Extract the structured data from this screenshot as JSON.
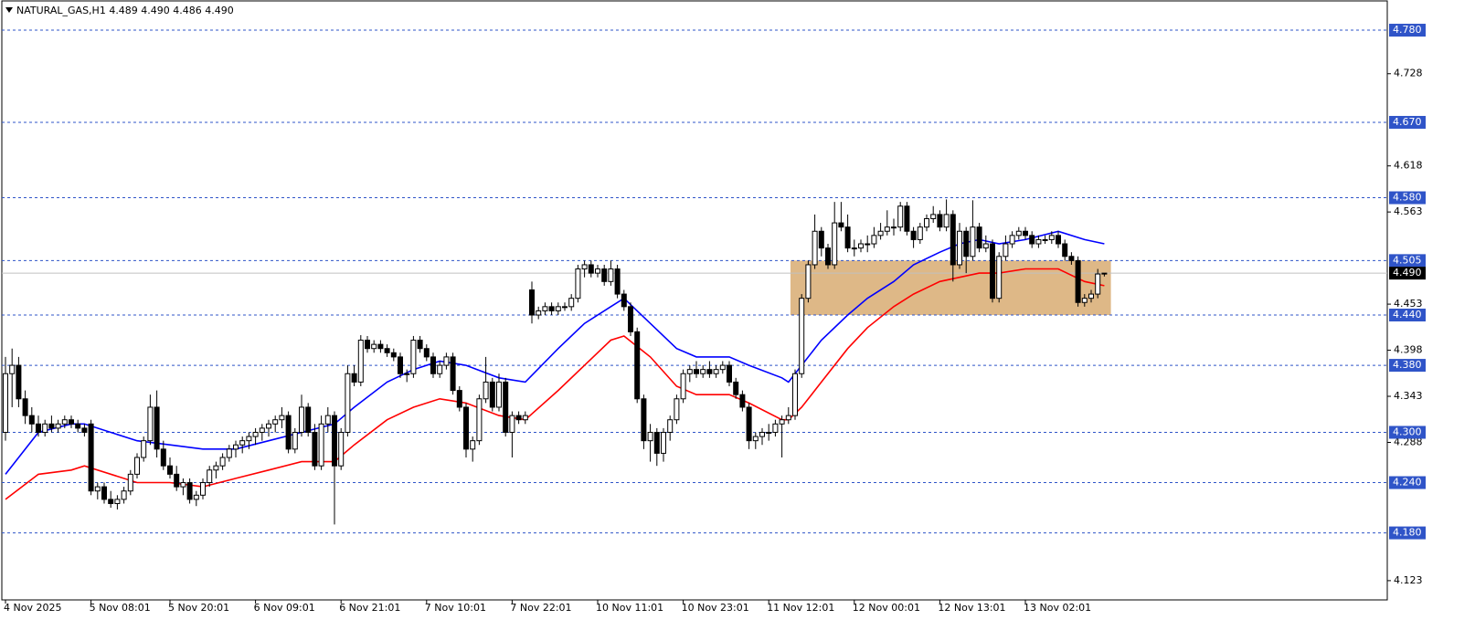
{
  "chart_data": {
    "type": "candlestick",
    "title": "NATURAL_GAS,H1  4.489 4.490 4.486 4.490",
    "categories": [
      "4 Nov 2025",
      null,
      null,
      null,
      null,
      null,
      null,
      null,
      null,
      null,
      null,
      null,
      null,
      "5 Nov 08:01",
      null,
      null,
      null,
      null,
      null,
      null,
      null,
      null,
      null,
      null,
      null,
      "5 Nov 20:01",
      null,
      null,
      null,
      null,
      null,
      null,
      null,
      null,
      null,
      null,
      null,
      null,
      "6 Nov 09:01",
      null,
      null,
      null,
      null,
      null,
      null,
      null,
      null,
      null,
      null,
      null,
      null,
      "6 Nov 21:01",
      null,
      null,
      null,
      null,
      null,
      null,
      null,
      null,
      null,
      null,
      null,
      null,
      "7 Nov 10:01",
      null,
      null,
      null,
      null,
      null,
      null,
      null,
      null,
      null,
      null,
      null,
      null,
      "7 Nov 22:01",
      null,
      null,
      null,
      null,
      null,
      null,
      null,
      null,
      null,
      null,
      null,
      null,
      "10 Nov 11:01",
      null,
      null,
      null,
      null,
      null,
      null,
      null,
      null,
      null,
      null,
      null,
      null,
      "10 Nov 23:01",
      null,
      null,
      null,
      null,
      null,
      null,
      null,
      null,
      null,
      null,
      null,
      null,
      "11 Nov 12:01",
      null,
      null,
      null,
      null,
      null,
      null,
      null,
      null,
      null,
      null,
      null,
      null,
      "12 Nov 00:01",
      null,
      null,
      null,
      null,
      null,
      null,
      null,
      null,
      null,
      null,
      null,
      null,
      "12 Nov 13:01",
      null,
      null,
      null,
      null,
      null,
      null,
      null,
      null,
      null,
      null,
      null,
      null,
      "13 Nov 02:01",
      null,
      null,
      null,
      null,
      null,
      null,
      null,
      null,
      null,
      null,
      null,
      null
    ],
    "candles": [
      [
        4.3,
        4.39,
        4.29,
        4.37
      ],
      [
        4.37,
        4.4,
        4.33,
        4.38
      ],
      [
        4.38,
        4.39,
        4.33,
        4.34
      ],
      [
        4.34,
        4.35,
        4.31,
        4.32
      ],
      [
        4.32,
        4.33,
        4.3,
        4.31
      ],
      [
        4.31,
        4.32,
        4.295,
        4.3
      ],
      [
        4.3,
        4.315,
        4.295,
        4.31
      ],
      [
        4.31,
        4.32,
        4.3,
        4.305
      ],
      [
        4.305,
        4.315,
        4.3,
        4.31
      ],
      [
        4.31,
        4.32,
        4.305,
        4.315
      ],
      [
        4.315,
        4.32,
        4.305,
        4.31
      ],
      [
        4.31,
        4.315,
        4.3,
        4.305
      ],
      [
        4.305,
        4.31,
        4.295,
        4.3
      ],
      [
        4.31,
        4.315,
        4.225,
        4.23
      ],
      [
        4.23,
        4.24,
        4.22,
        4.235
      ],
      [
        4.235,
        4.24,
        4.215,
        4.22
      ],
      [
        4.22,
        4.23,
        4.21,
        4.215
      ],
      [
        4.215,
        4.225,
        4.208,
        4.22
      ],
      [
        4.22,
        4.235,
        4.215,
        4.23
      ],
      [
        4.23,
        4.255,
        4.225,
        4.25
      ],
      [
        4.25,
        4.275,
        4.245,
        4.27
      ],
      [
        4.27,
        4.295,
        4.265,
        4.29
      ],
      [
        4.29,
        4.345,
        4.285,
        4.33
      ],
      [
        4.33,
        4.35,
        4.27,
        4.28
      ],
      [
        4.28,
        4.29,
        4.255,
        4.26
      ],
      [
        4.26,
        4.27,
        4.245,
        4.25
      ],
      [
        4.25,
        4.26,
        4.23,
        4.235
      ],
      [
        4.235,
        4.245,
        4.225,
        4.24
      ],
      [
        4.24,
        4.245,
        4.215,
        4.22
      ],
      [
        4.22,
        4.23,
        4.212,
        4.225
      ],
      [
        4.225,
        4.245,
        4.22,
        4.24
      ],
      [
        4.24,
        4.26,
        4.235,
        4.255
      ],
      [
        4.255,
        4.265,
        4.245,
        4.26
      ],
      [
        4.26,
        4.275,
        4.255,
        4.27
      ],
      [
        4.27,
        4.285,
        4.265,
        4.28
      ],
      [
        4.28,
        4.29,
        4.27,
        4.285
      ],
      [
        4.285,
        4.295,
        4.275,
        4.29
      ],
      [
        4.29,
        4.3,
        4.28,
        4.295
      ],
      [
        4.295,
        4.305,
        4.285,
        4.3
      ],
      [
        4.3,
        4.31,
        4.29,
        4.305
      ],
      [
        4.305,
        4.315,
        4.295,
        4.31
      ],
      [
        4.31,
        4.32,
        4.3,
        4.315
      ],
      [
        4.315,
        4.33,
        4.305,
        4.32
      ],
      [
        4.32,
        4.325,
        4.275,
        4.28
      ],
      [
        4.28,
        4.305,
        4.275,
        4.3
      ],
      [
        4.3,
        4.345,
        4.295,
        4.33
      ],
      [
        4.33,
        4.335,
        4.295,
        4.3
      ],
      [
        4.3,
        4.31,
        4.255,
        4.26
      ],
      [
        4.26,
        4.32,
        4.255,
        4.31
      ],
      [
        4.31,
        4.33,
        4.3,
        4.32
      ],
      [
        4.32,
        4.325,
        4.19,
        4.26
      ],
      [
        4.26,
        4.305,
        4.255,
        4.3
      ],
      [
        4.3,
        4.38,
        4.295,
        4.37
      ],
      [
        4.37,
        4.38,
        4.355,
        4.36
      ],
      [
        4.36,
        4.416,
        4.355,
        4.41
      ],
      [
        4.41,
        4.415,
        4.395,
        4.4
      ],
      [
        4.4,
        4.41,
        4.395,
        4.405
      ],
      [
        4.405,
        4.41,
        4.395,
        4.4
      ],
      [
        4.4,
        4.405,
        4.39,
        4.395
      ],
      [
        4.395,
        4.4,
        4.385,
        4.39
      ],
      [
        4.39,
        4.395,
        4.365,
        4.37
      ],
      [
        4.37,
        4.375,
        4.36,
        4.37
      ],
      [
        4.37,
        4.415,
        4.365,
        4.41
      ],
      [
        4.41,
        4.415,
        4.395,
        4.4
      ],
      [
        4.4,
        4.405,
        4.385,
        4.39
      ],
      [
        4.39,
        4.395,
        4.365,
        4.37
      ],
      [
        4.37,
        4.385,
        4.365,
        4.38
      ],
      [
        4.38,
        4.395,
        4.375,
        4.39
      ],
      [
        4.39,
        4.395,
        4.345,
        4.35
      ],
      [
        4.35,
        4.355,
        4.325,
        4.33
      ],
      [
        4.33,
        4.335,
        4.27,
        4.28
      ],
      [
        4.28,
        4.295,
        4.265,
        4.29
      ],
      [
        4.29,
        4.345,
        4.285,
        4.34
      ],
      [
        4.34,
        4.39,
        4.335,
        4.36
      ],
      [
        4.36,
        4.365,
        4.325,
        4.33
      ],
      [
        4.33,
        4.37,
        4.325,
        4.36
      ],
      [
        4.36,
        4.365,
        4.295,
        4.3
      ],
      [
        4.3,
        4.325,
        4.27,
        4.32
      ],
      [
        4.32,
        4.325,
        4.31,
        4.315
      ],
      [
        4.315,
        4.325,
        4.31,
        4.32
      ],
      [
        4.47,
        4.48,
        4.43,
        4.44
      ],
      [
        4.44,
        4.45,
        4.435,
        4.445
      ],
      [
        4.445,
        4.455,
        4.44,
        4.45
      ],
      [
        4.45,
        4.455,
        4.44,
        4.445
      ],
      [
        4.445,
        4.455,
        4.44,
        4.45
      ],
      [
        4.45,
        4.455,
        4.445,
        4.45
      ],
      [
        4.45,
        4.465,
        4.445,
        4.46
      ],
      [
        4.46,
        4.5,
        4.455,
        4.495
      ],
      [
        4.495,
        4.505,
        4.485,
        4.5
      ],
      [
        4.5,
        4.505,
        4.485,
        4.49
      ],
      [
        4.49,
        4.5,
        4.485,
        4.495
      ],
      [
        4.495,
        4.5,
        4.475,
        4.48
      ],
      [
        4.48,
        4.505,
        4.475,
        4.495
      ],
      [
        4.495,
        4.5,
        4.46,
        4.465
      ],
      [
        4.465,
        4.47,
        4.445,
        4.45
      ],
      [
        4.45,
        4.455,
        4.415,
        4.42
      ],
      [
        4.42,
        4.425,
        4.335,
        4.34
      ],
      [
        4.34,
        4.345,
        4.28,
        4.29
      ],
      [
        4.29,
        4.31,
        4.265,
        4.3
      ],
      [
        4.3,
        4.305,
        4.26,
        4.275
      ],
      [
        4.275,
        4.305,
        4.265,
        4.3
      ],
      [
        4.3,
        4.32,
        4.29,
        4.315
      ],
      [
        4.315,
        4.345,
        4.31,
        4.34
      ],
      [
        4.34,
        4.375,
        4.335,
        4.37
      ],
      [
        4.37,
        4.38,
        4.36,
        4.375
      ],
      [
        4.375,
        4.385,
        4.365,
        4.37
      ],
      [
        4.37,
        4.38,
        4.365,
        4.375
      ],
      [
        4.375,
        4.385,
        4.365,
        4.37
      ],
      [
        4.37,
        4.38,
        4.365,
        4.375
      ],
      [
        4.375,
        4.385,
        4.37,
        4.38
      ],
      [
        4.38,
        4.385,
        4.355,
        4.36
      ],
      [
        4.36,
        4.365,
        4.34,
        4.345
      ],
      [
        4.345,
        4.35,
        4.325,
        4.33
      ],
      [
        4.33,
        4.335,
        4.28,
        4.29
      ],
      [
        4.29,
        4.3,
        4.28,
        4.295
      ],
      [
        4.295,
        4.305,
        4.285,
        4.3
      ],
      [
        4.3,
        4.31,
        4.29,
        4.3
      ],
      [
        4.3,
        4.315,
        4.295,
        4.31
      ],
      [
        4.31,
        4.32,
        4.27,
        4.315
      ],
      [
        4.315,
        4.33,
        4.31,
        4.32
      ],
      [
        4.32,
        4.375,
        4.315,
        4.37
      ],
      [
        4.37,
        4.465,
        4.365,
        4.46
      ],
      [
        4.46,
        4.505,
        4.455,
        4.5
      ],
      [
        4.5,
        4.56,
        4.495,
        4.54
      ],
      [
        4.54,
        4.545,
        4.51,
        4.52
      ],
      [
        4.52,
        4.525,
        4.495,
        4.5
      ],
      [
        4.5,
        4.575,
        4.495,
        4.55
      ],
      [
        4.55,
        4.575,
        4.54,
        4.545
      ],
      [
        4.545,
        4.56,
        4.515,
        4.52
      ],
      [
        4.52,
        4.53,
        4.51,
        4.52
      ],
      [
        4.52,
        4.53,
        4.515,
        4.525
      ],
      [
        4.525,
        4.535,
        4.515,
        4.525
      ],
      [
        4.525,
        4.545,
        4.52,
        4.535
      ],
      [
        4.535,
        4.55,
        4.53,
        4.54
      ],
      [
        4.54,
        4.565,
        4.535,
        4.545
      ],
      [
        4.545,
        4.555,
        4.535,
        4.545
      ],
      [
        4.545,
        4.575,
        4.54,
        4.57
      ],
      [
        4.57,
        4.575,
        4.535,
        4.54
      ],
      [
        4.54,
        4.545,
        4.52,
        4.53
      ],
      [
        4.53,
        4.55,
        4.525,
        4.545
      ],
      [
        4.545,
        4.56,
        4.54,
        4.555
      ],
      [
        4.555,
        4.57,
        4.55,
        4.56
      ],
      [
        4.56,
        4.565,
        4.54,
        4.545
      ],
      [
        4.545,
        4.578,
        4.54,
        4.56
      ],
      [
        4.56,
        4.565,
        4.48,
        4.5
      ],
      [
        4.5,
        4.55,
        4.495,
        4.54
      ],
      [
        4.54,
        4.545,
        4.49,
        4.51
      ],
      [
        4.51,
        4.577,
        4.505,
        4.545
      ],
      [
        4.545,
        4.55,
        4.515,
        4.52
      ],
      [
        4.52,
        4.535,
        4.515,
        4.525
      ],
      [
        4.525,
        4.53,
        4.455,
        4.46
      ],
      [
        4.46,
        4.515,
        4.455,
        4.51
      ],
      [
        4.51,
        4.535,
        4.505,
        4.525
      ],
      [
        4.525,
        4.54,
        4.52,
        4.535
      ],
      [
        4.535,
        4.545,
        4.53,
        4.54
      ],
      [
        4.54,
        4.545,
        4.53,
        4.535
      ],
      [
        4.535,
        4.54,
        4.52,
        4.525
      ],
      [
        4.525,
        4.535,
        4.52,
        4.53
      ],
      [
        4.53,
        4.535,
        4.525,
        4.53
      ],
      [
        4.53,
        4.54,
        4.525,
        4.535
      ],
      [
        4.535,
        4.54,
        4.52,
        4.525
      ],
      [
        4.525,
        4.53,
        4.505,
        4.51
      ],
      [
        4.51,
        4.515,
        4.5,
        4.505
      ],
      [
        4.505,
        4.51,
        4.45,
        4.455
      ],
      [
        4.455,
        4.465,
        4.45,
        4.46
      ],
      [
        4.46,
        4.47,
        4.455,
        4.465
      ],
      [
        4.465,
        4.495,
        4.46,
        4.489
      ],
      [
        4.489,
        4.49,
        4.486,
        4.49
      ]
    ],
    "up_color": "#ffffff",
    "down_color": "#000000",
    "wick_color": "#000000",
    "lines": [
      {
        "color": "#0000ff",
        "x": [
          0,
          5,
          10,
          12,
          20,
          25,
          30,
          35,
          40,
          45,
          50,
          53,
          58,
          62,
          66,
          70,
          75,
          79,
          84,
          88,
          92,
          94,
          98,
          102,
          105,
          110,
          113,
          118,
          119,
          121,
          124,
          128,
          131,
          135,
          138,
          142,
          145,
          148,
          151,
          155,
          160,
          164,
          167
        ],
        "values": [
          4.25,
          4.3,
          4.31,
          4.31,
          4.29,
          4.285,
          4.28,
          4.28,
          4.29,
          4.3,
          4.31,
          4.33,
          4.36,
          4.375,
          4.385,
          4.38,
          4.365,
          4.36,
          4.4,
          4.43,
          4.45,
          4.46,
          4.43,
          4.4,
          4.39,
          4.39,
          4.38,
          4.365,
          4.36,
          4.38,
          4.41,
          4.44,
          4.46,
          4.48,
          4.5,
          4.515,
          4.525,
          4.53,
          4.525,
          4.53,
          4.54,
          4.53,
          4.525
        ]
      },
      {
        "color": "#ff0000",
        "x": [
          0,
          5,
          10,
          12,
          20,
          25,
          30,
          35,
          40,
          45,
          50,
          53,
          58,
          62,
          66,
          70,
          75,
          79,
          84,
          88,
          92,
          94,
          98,
          102,
          105,
          110,
          113,
          118,
          119,
          121,
          124,
          128,
          131,
          135,
          138,
          142,
          145,
          148,
          151,
          155,
          160,
          164,
          167
        ],
        "values": [
          4.22,
          4.25,
          4.255,
          4.26,
          4.24,
          4.24,
          4.235,
          4.245,
          4.255,
          4.265,
          4.265,
          4.285,
          4.315,
          4.33,
          4.34,
          4.335,
          4.32,
          4.315,
          4.35,
          4.38,
          4.41,
          4.415,
          4.39,
          4.355,
          4.345,
          4.345,
          4.335,
          4.315,
          4.315,
          4.33,
          4.36,
          4.4,
          4.425,
          4.45,
          4.465,
          4.48,
          4.485,
          4.49,
          4.49,
          4.495,
          4.495,
          4.48,
          4.475
        ]
      }
    ],
    "zone": {
      "x": [
        119.3,
        168
      ],
      "y": [
        4.44,
        4.505
      ],
      "color": "#deb887"
    },
    "ylim": [
      4.1,
      4.816
    ],
    "yticks": [
      4.728,
      4.618,
      4.563,
      4.453,
      4.398,
      4.343,
      4.288,
      4.123
    ],
    "levels": [
      {
        "value": 4.78,
        "label": "4.780"
      },
      {
        "value": 4.67,
        "label": "4.670"
      },
      {
        "value": 4.58,
        "label": "4.580"
      },
      {
        "value": 4.505,
        "label": "4.505"
      },
      {
        "value": 4.44,
        "label": "4.440"
      },
      {
        "value": 4.38,
        "label": "4.380"
      },
      {
        "value": 4.3,
        "label": "4.300"
      },
      {
        "value": 4.24,
        "label": "4.240"
      },
      {
        "value": 4.18,
        "label": "4.180"
      }
    ],
    "level_color": "#2f54c8",
    "price": {
      "value": 4.49,
      "label": "4.490"
    },
    "price_color": "#c0c0c0"
  }
}
